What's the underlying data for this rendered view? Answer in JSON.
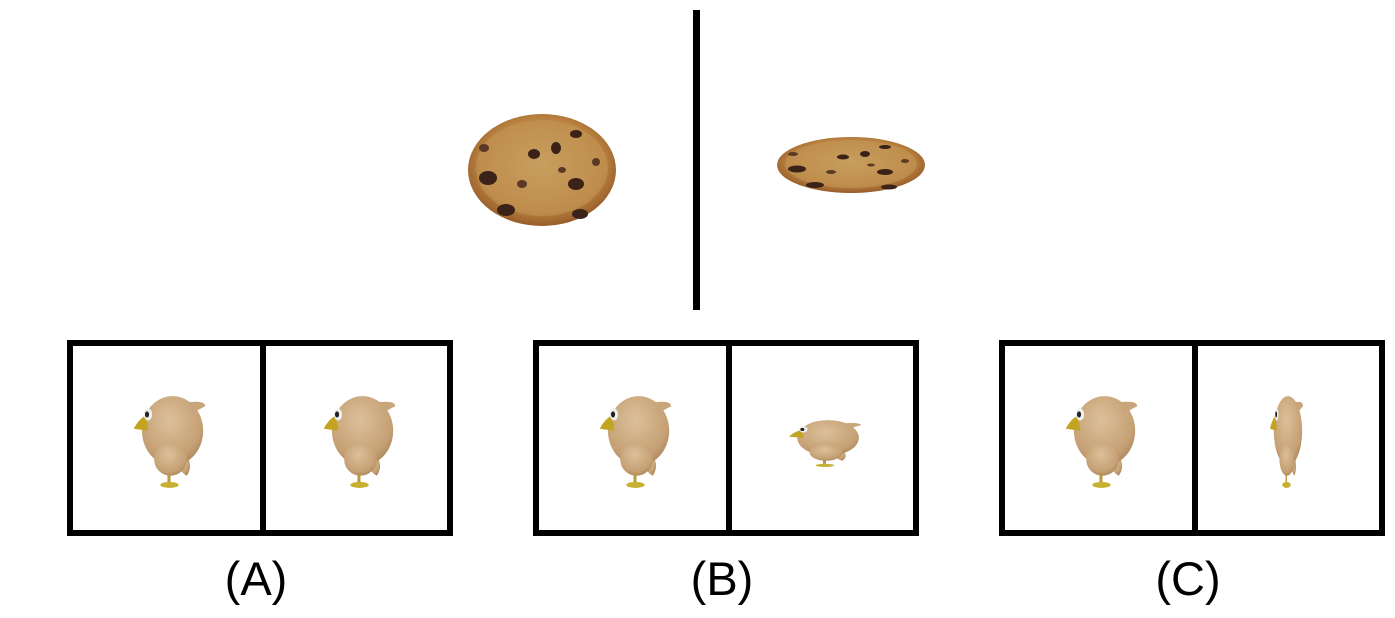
{
  "reference": {
    "object": "cookie",
    "left_view": "cookie-front-view",
    "right_view": "cookie-squashed-view"
  },
  "options": [
    {
      "label": "(A)",
      "left_view": "bird-side-view",
      "right_view": "bird-side-view"
    },
    {
      "label": "(B)",
      "left_view": "bird-side-view",
      "right_view": "bird-squashed-vertically-view"
    },
    {
      "label": "(C)",
      "left_view": "bird-side-view",
      "right_view": "bird-squashed-horizontally-view"
    }
  ],
  "colors": {
    "cookie_base": "#b87a3c",
    "cookie_light": "#c9a463",
    "chip": "#3a2218",
    "bird_body": "#c9a57a",
    "bird_beak": "#c2a420",
    "bird_feet": "#c9b030",
    "frame": "#000000"
  }
}
